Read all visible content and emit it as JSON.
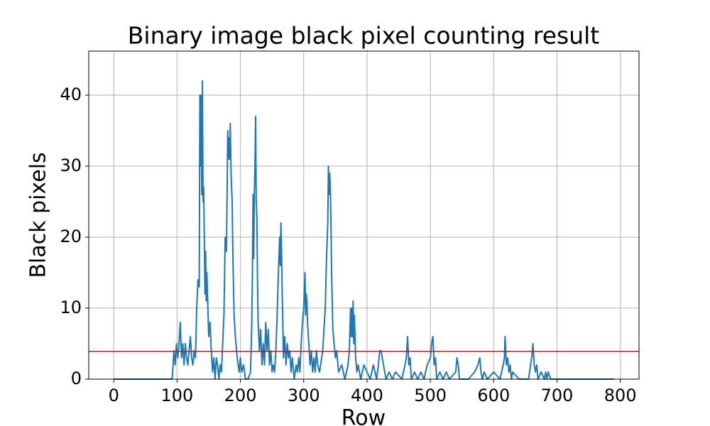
{
  "chart_data": {
    "type": "line",
    "title": "Binary image black pixel counting result",
    "xlabel": "Row",
    "ylabel": "Black pixels",
    "color": "#1f77b4",
    "threshold": {
      "value": 3.9,
      "color": "#ff0000"
    },
    "x": [
      0,
      92,
      93,
      95,
      97,
      99,
      101,
      103,
      105,
      107,
      109,
      111,
      113,
      115,
      117,
      119,
      121,
      123,
      125,
      127,
      129,
      131,
      133,
      135,
      136,
      137,
      138,
      139,
      140,
      141,
      142,
      143,
      144,
      145,
      146,
      147,
      148,
      150,
      152,
      154,
      156,
      158,
      160,
      162,
      164,
      166,
      168,
      170,
      172,
      174,
      176,
      178,
      180,
      181,
      182,
      183,
      184,
      185,
      186,
      187,
      188,
      190,
      192,
      195,
      198,
      200,
      202,
      205,
      208,
      212,
      216,
      218,
      219,
      220,
      221,
      222,
      223,
      224,
      225,
      226,
      227,
      228,
      230,
      232,
      234,
      236,
      238,
      240,
      242,
      244,
      246,
      248,
      250,
      252,
      254,
      256,
      258,
      260,
      262,
      263,
      264,
      265,
      266,
      267,
      268,
      270,
      272,
      274,
      276,
      278,
      280,
      282,
      285,
      288,
      290,
      292,
      294,
      296,
      298,
      300,
      302,
      303,
      304,
      305,
      306,
      308,
      310,
      312,
      314,
      316,
      318,
      320,
      322,
      325,
      330,
      334,
      336,
      338,
      339,
      340,
      341,
      342,
      343,
      344,
      346,
      348,
      350,
      352,
      355,
      360,
      365,
      370,
      372,
      374,
      375,
      376,
      377,
      378,
      379,
      380,
      382,
      384,
      386,
      390,
      395,
      400,
      405,
      410,
      415,
      418,
      420,
      422,
      424,
      426,
      428,
      430,
      435,
      440,
      445,
      455,
      460,
      462,
      464,
      466,
      468,
      470,
      475,
      480,
      485,
      490,
      495,
      500,
      502,
      504,
      506,
      508,
      510,
      515,
      520,
      525,
      530,
      540,
      542,
      544,
      546,
      550,
      560,
      570,
      575,
      578,
      580,
      582,
      585,
      590,
      600,
      610,
      615,
      617,
      618,
      620,
      622,
      624,
      626,
      628,
      630,
      640,
      655,
      660,
      662,
      664,
      666,
      668,
      670,
      675,
      680,
      682,
      684,
      686,
      690,
      700,
      750,
      790
    ],
    "values": [
      0,
      0,
      1,
      4,
      2,
      5,
      3,
      5,
      8,
      3,
      5,
      2,
      5,
      3,
      2,
      4,
      6,
      3,
      2,
      4,
      3,
      10,
      14,
      13,
      40,
      30,
      40,
      26,
      42,
      25,
      27,
      20,
      12,
      18,
      11,
      15,
      12,
      6,
      8,
      4,
      1,
      3,
      0,
      3,
      2,
      0,
      2,
      1,
      5,
      9,
      20,
      18,
      35,
      31,
      34,
      31,
      36,
      30,
      27,
      25,
      18,
      9,
      6,
      3,
      1,
      3,
      1,
      2,
      0,
      0,
      1,
      8,
      15,
      26,
      17,
      26,
      30,
      37,
      25,
      23,
      14,
      8,
      4,
      7,
      2,
      5,
      2,
      8,
      4,
      7,
      2,
      4,
      1,
      2,
      1,
      4,
      9,
      15,
      20,
      16,
      22,
      18,
      12,
      8,
      3,
      6,
      2,
      5,
      3,
      4,
      1,
      3,
      0,
      2,
      1,
      3,
      1,
      5,
      8,
      10,
      15,
      9,
      12,
      11,
      8,
      5,
      2,
      4,
      1,
      3,
      1,
      4,
      2,
      1,
      4,
      10,
      17,
      22,
      30,
      26,
      29,
      27,
      22,
      15,
      7,
      5,
      3,
      4,
      1,
      2,
      0,
      2,
      4,
      10,
      6,
      10,
      6,
      11,
      5,
      9,
      3,
      1,
      2,
      0,
      2,
      1,
      0,
      2,
      0,
      2,
      4,
      4,
      3,
      2,
      1,
      0,
      1,
      0,
      1,
      0,
      2,
      3,
      6,
      2,
      3,
      0,
      1,
      0,
      1,
      0,
      2,
      3,
      5,
      6,
      2,
      3,
      0,
      1,
      0,
      1,
      0,
      1,
      3,
      2,
      0,
      0,
      0,
      1,
      2,
      3,
      1,
      0,
      1,
      0,
      1,
      0,
      2,
      3,
      6,
      2,
      3,
      1,
      2,
      0,
      1,
      0,
      0,
      3,
      5,
      2,
      1,
      2,
      0,
      1,
      0,
      1,
      0,
      1,
      0,
      0,
      0,
      0
    ],
    "xlim": [
      -39.5,
      829.5
    ],
    "ylim": [
      0,
      46.2
    ],
    "xticks": [
      0,
      100,
      200,
      300,
      400,
      500,
      600,
      700,
      800
    ],
    "yticks": [
      0,
      10,
      20,
      30,
      40
    ],
    "grid": true
  }
}
